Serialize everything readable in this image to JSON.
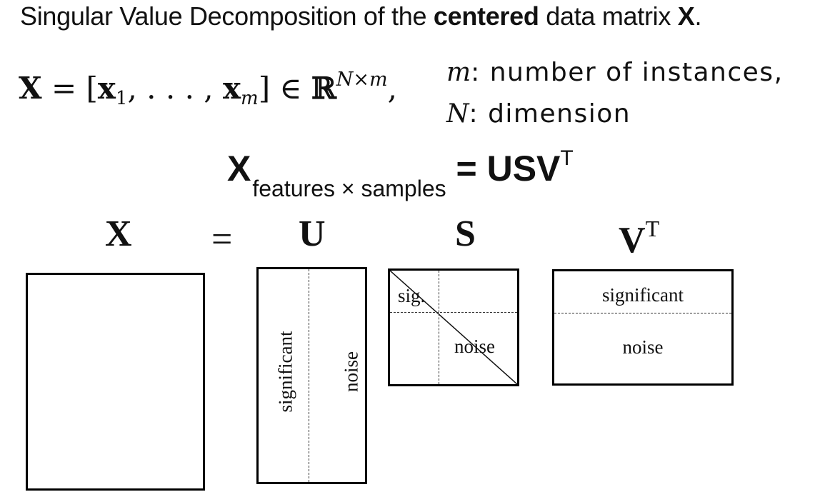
{
  "title": {
    "prefix": "Singular Value Decomposition of the ",
    "emphasis": "centered",
    "middle": " data matrix ",
    "matrix": "X",
    "suffix": "."
  },
  "definition": {
    "lhs": "X",
    "equals": " = [",
    "x1": "x",
    "sub1": "1",
    "dots": ", . . . , ",
    "xm": "x",
    "subm": "m",
    "close": "] ∈ ",
    "field": "ℝ",
    "dims": "N×m",
    "comma": ","
  },
  "legend": {
    "m_symbol": "m",
    "m_text": ": number of instances,",
    "n_symbol": "N",
    "n_text": ": dimension"
  },
  "svd_equation": {
    "lhs": "X",
    "subscript": "features × samples",
    "equals": " = USV",
    "sup": "T"
  },
  "matrices": {
    "x_label": "X",
    "equals": "=",
    "u_label": "U",
    "s_label": "S",
    "v_label": "V",
    "v_sup": "T",
    "u_significant": "significant",
    "u_noise": "noise",
    "s_sig": "sig.",
    "s_noise": "noise",
    "v_significant": "significant",
    "v_noise": "noise"
  }
}
